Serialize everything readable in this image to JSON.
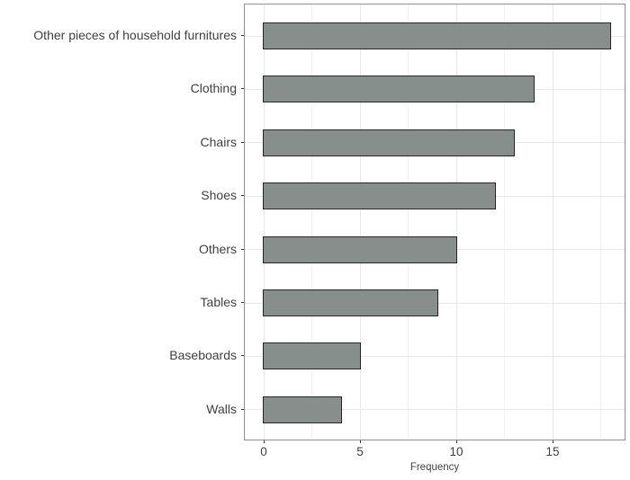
{
  "chart_data": {
    "type": "bar",
    "orientation": "horizontal",
    "title": "",
    "xlabel": "Frequency",
    "ylabel": "",
    "categories": [
      "Other pieces of household furnitures",
      "Clothing",
      "Chairs",
      "Shoes",
      "Others",
      "Tables",
      "Baseboards",
      "Walls"
    ],
    "values": [
      18,
      14,
      13,
      12,
      10,
      9,
      5,
      4
    ],
    "x_ticks": [
      0,
      5,
      10,
      15
    ],
    "x_minor_ticks": [
      2.5,
      7.5,
      12.5,
      17.5
    ],
    "xlim": [
      -1,
      18.7
    ],
    "grid": "vertical major+minor, horizontal major at category centers",
    "legend": "none",
    "colors": {
      "bar_fill": "#878e8c",
      "bar_stroke": "#262626",
      "grid_major": "#e8e8e8",
      "grid_minor": "#f4f4f4",
      "panel_border": "#8f8f8f",
      "panel_bg": "#ffffff",
      "axis_text": "#3f3f3f",
      "tick_mark": "#333333"
    }
  }
}
